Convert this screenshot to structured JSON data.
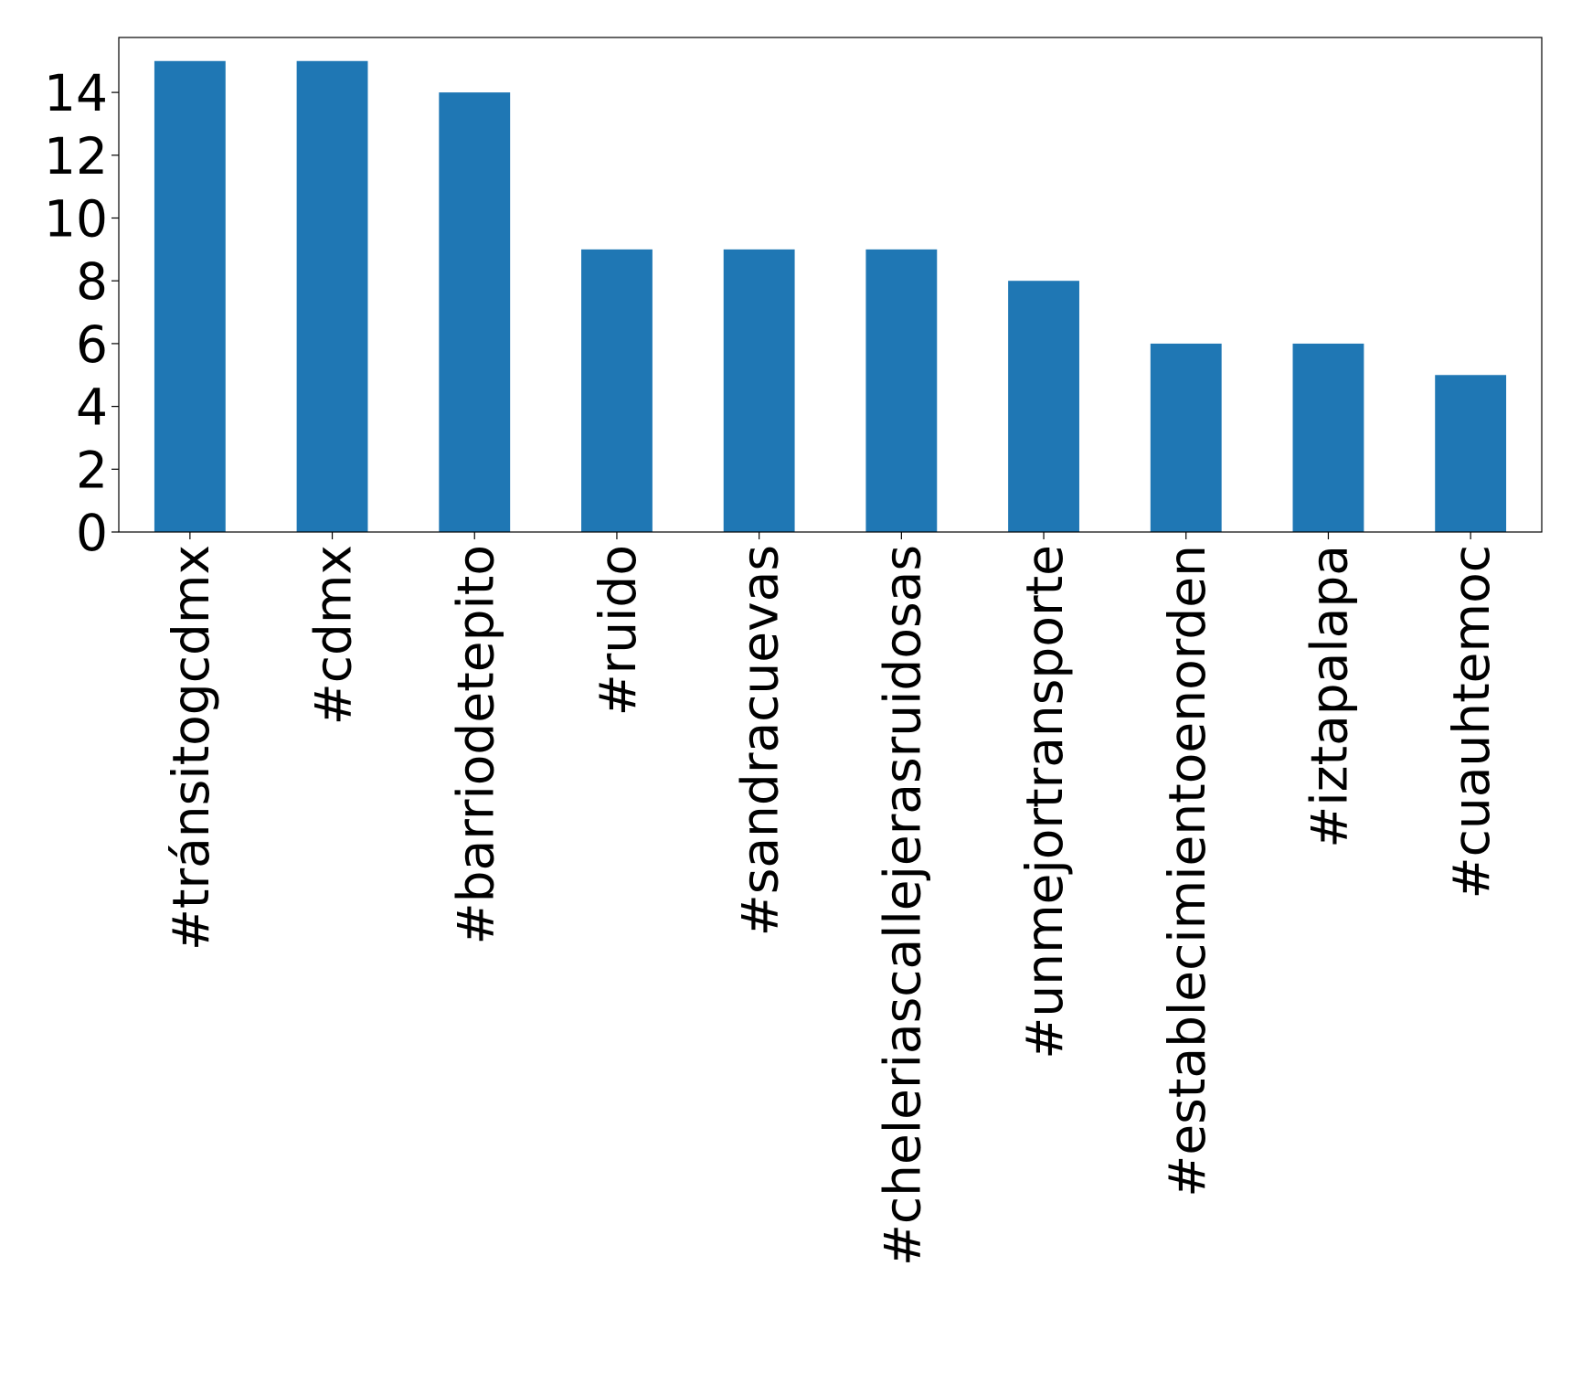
{
  "chart_data": {
    "type": "bar",
    "categories": [
      "#tránsitogcdmx",
      "#cdmx",
      "#barriodetepito",
      "#ruido",
      "#sandracuevas",
      "#cheleriascallejerasruidosas",
      "#unmejortransporte",
      "#establecimientoenorden",
      "#iztapalapa",
      "#cuauhtemoc"
    ],
    "values": [
      15,
      15,
      14,
      9,
      9,
      9,
      8,
      6,
      6,
      5
    ],
    "color": "#1f77b4",
    "ylim": [
      0,
      15.75
    ],
    "yticks": [
      0,
      2,
      4,
      6,
      8,
      10,
      12,
      14
    ],
    "grid": false
  }
}
